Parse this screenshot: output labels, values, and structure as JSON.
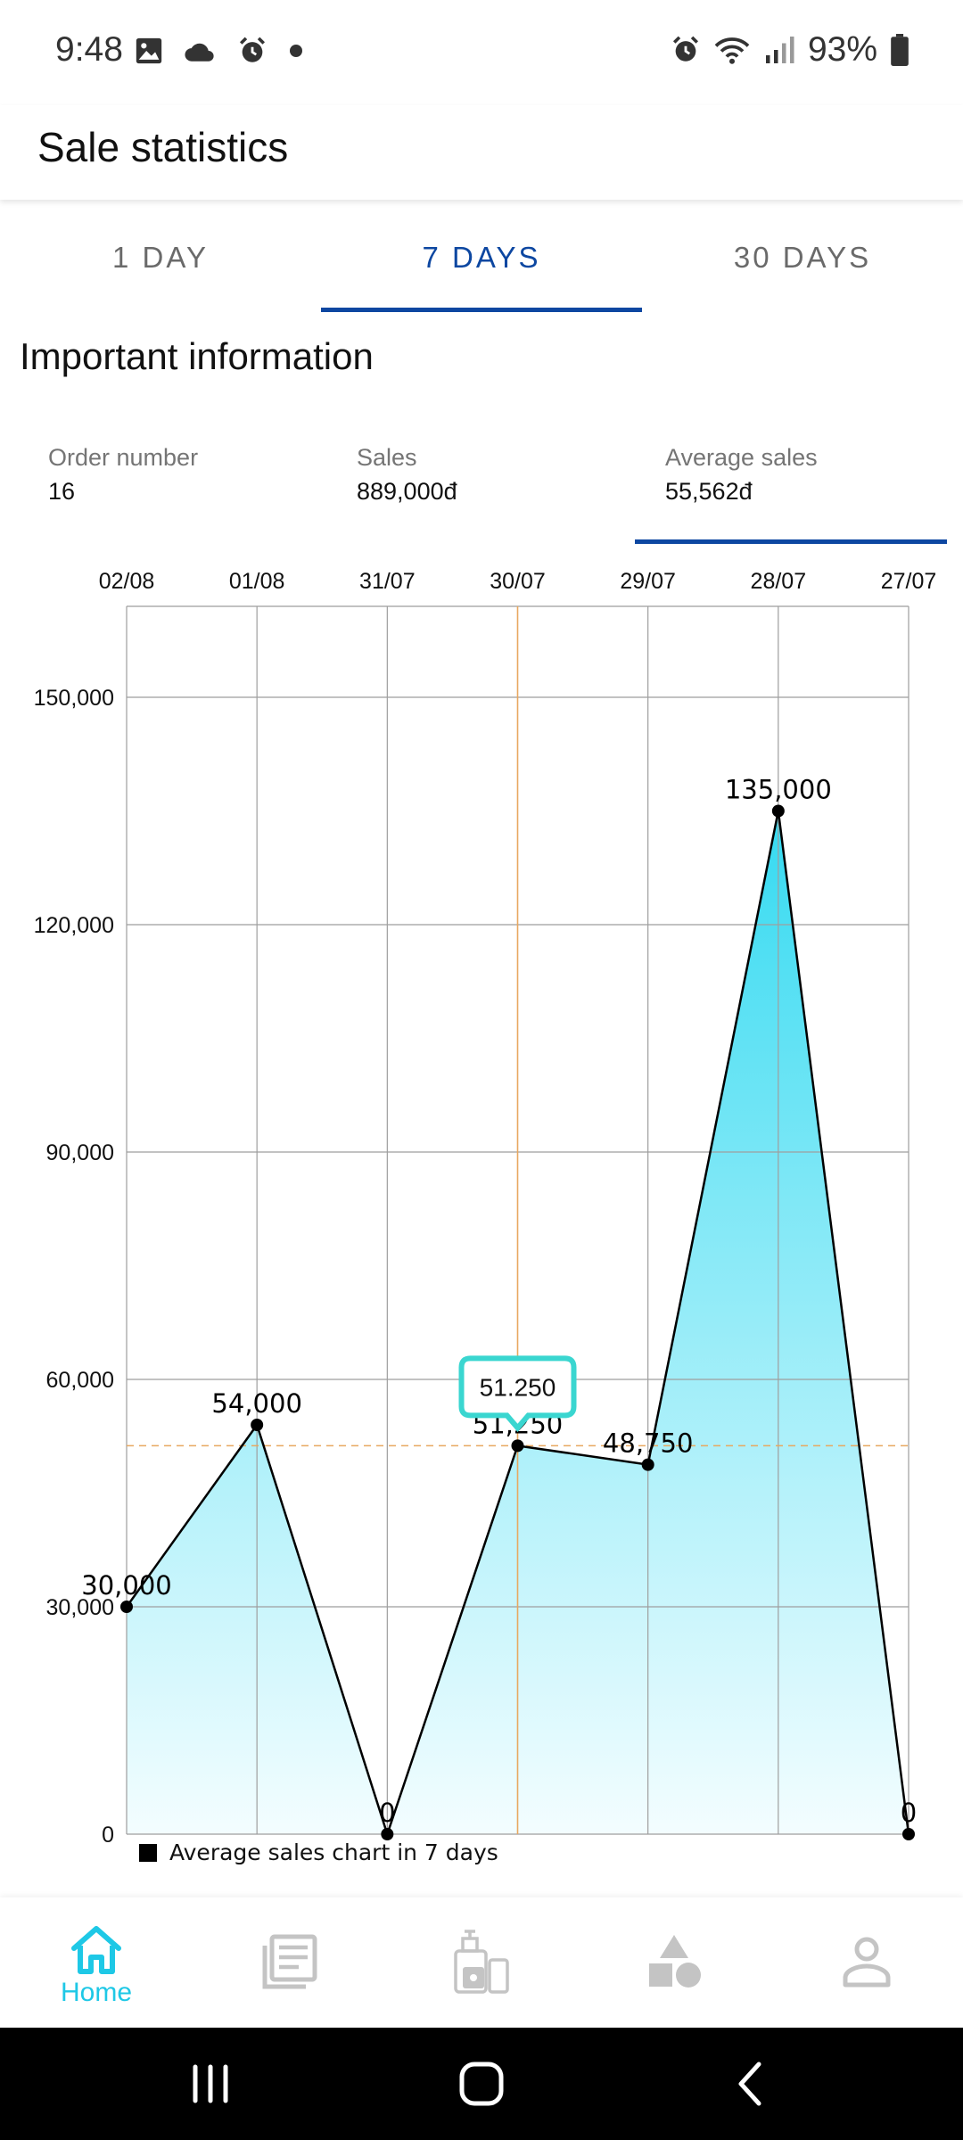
{
  "status_bar": {
    "time": "9:48",
    "battery": "93%",
    "icons": [
      "image-icon",
      "cloud-icon",
      "alarm-icon",
      "dot-icon",
      "alarm-icon",
      "wifi-icon",
      "signal-icon",
      "battery-icon"
    ]
  },
  "app_bar": {
    "title": "Sale statistics"
  },
  "tabs": [
    {
      "label": "1 DAY",
      "active": false
    },
    {
      "label": "7 DAYS",
      "active": true
    },
    {
      "label": "30 DAYS",
      "active": false
    }
  ],
  "section_title": "Important information",
  "info": [
    {
      "label": "Order number",
      "value": "16",
      "active": false
    },
    {
      "label": "Sales",
      "value": "889,000đ",
      "active": false
    },
    {
      "label": "Average sales",
      "value": "55,562đ",
      "active": true
    }
  ],
  "chart_data": {
    "type": "area",
    "categories": [
      "02/08",
      "01/08",
      "31/07",
      "30/07",
      "29/07",
      "28/07",
      "27/07"
    ],
    "values": [
      30000,
      54000,
      0,
      51250,
      48750,
      135000,
      0
    ],
    "data_labels": [
      "30,000",
      "54,000",
      "0",
      "51,250",
      "48,750",
      "135,000",
      "0"
    ],
    "y_ticks": [
      0,
      30000,
      60000,
      90000,
      120000,
      150000
    ],
    "y_tick_labels": [
      "0",
      "30,000",
      "60,000",
      "90,000",
      "120,000",
      "150,000"
    ],
    "ylim": [
      0,
      162000
    ],
    "legend": "Average sales chart in 7 days",
    "legend_placement": "bottom-left",
    "grid": true,
    "highlight": {
      "index": 3,
      "tooltip": "51.250"
    },
    "colors": {
      "fill_top": "#2ad8f0",
      "fill_bottom": "#f2fdff",
      "line": "#000000",
      "highlight_line": "#e8a860",
      "tooltip_border": "#3ad6d0"
    }
  },
  "bottom_nav": [
    {
      "icon": "home-icon",
      "label": "Home",
      "active": true
    },
    {
      "icon": "news-icon",
      "label": "",
      "active": false
    },
    {
      "icon": "cosmetics-icon",
      "label": "",
      "active": false
    },
    {
      "icon": "shapes-icon",
      "label": "",
      "active": false
    },
    {
      "icon": "person-icon",
      "label": "",
      "active": false
    }
  ],
  "colors": {
    "accent": "#0d47a1",
    "nav_active": "#1ec8e6",
    "nav_inactive": "#c4c4c4"
  }
}
